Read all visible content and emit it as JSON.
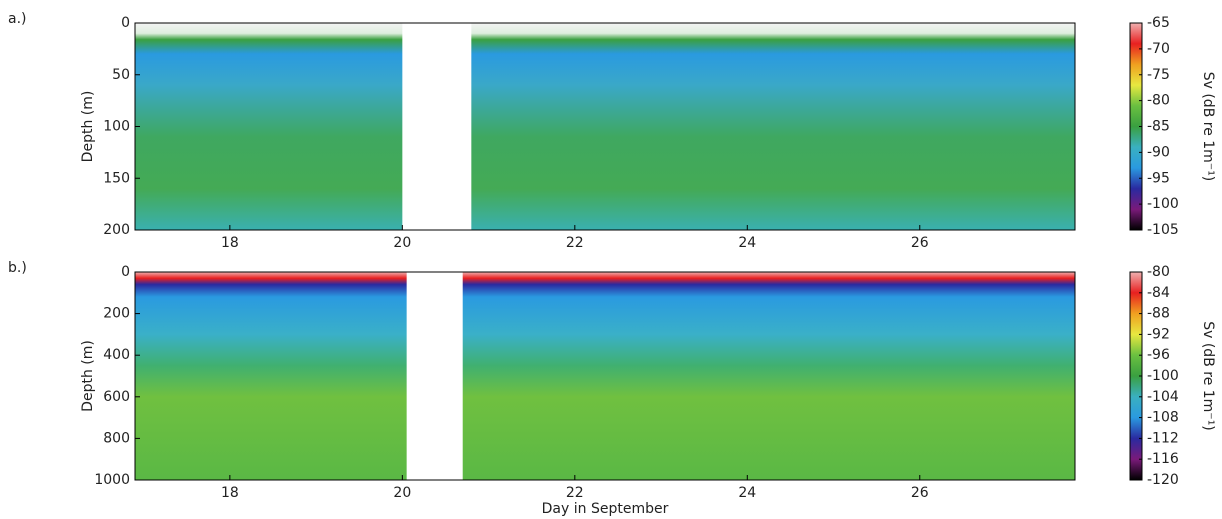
{
  "chart_data": [
    {
      "type": "heatmap",
      "panel_label": "a.)",
      "ylabel": "Depth (m)",
      "xlim": [
        16.9,
        27.8
      ],
      "xticks": [
        18,
        20,
        22,
        24,
        26
      ],
      "ylim": [
        0,
        200
      ],
      "yticks": [
        0,
        50,
        100,
        150,
        200
      ],
      "y_inverted": true,
      "gap": [
        20.0,
        20.8
      ],
      "colorbar": {
        "label": "Sv (dB re 1m⁻¹)",
        "lim": [
          -105,
          -65
        ],
        "ticks": [
          -65,
          -70,
          -75,
          -80,
          -85,
          -90,
          -95,
          -100,
          -105
        ],
        "colors": [
          "#000000",
          "#7a1a7a",
          "#2a2aa0",
          "#2a9ae0",
          "#3ab0c0",
          "#3aa040",
          "#6ac040",
          "#e8e840",
          "#f0a020",
          "#e82020",
          "#f0b0b0"
        ]
      }
    },
    {
      "type": "heatmap",
      "panel_label": "b.)",
      "ylabel": "Depth (m)",
      "xlabel": "Day in September",
      "xlim": [
        16.9,
        27.8
      ],
      "xticks": [
        18,
        20,
        22,
        24,
        26
      ],
      "ylim": [
        0,
        1000
      ],
      "yticks": [
        0,
        200,
        400,
        600,
        800,
        1000
      ],
      "y_inverted": true,
      "gap": [
        20.05,
        20.7
      ],
      "colorbar": {
        "label": "Sv (dB re 1m⁻¹)",
        "lim": [
          -120,
          -80
        ],
        "ticks": [
          -80,
          -84,
          -88,
          -92,
          -96,
          -100,
          -104,
          -108,
          -112,
          -116,
          -120
        ],
        "colors": [
          "#000000",
          "#7a1a7a",
          "#2a2aa0",
          "#2a9ae0",
          "#3ab0c0",
          "#3aa040",
          "#6ac040",
          "#e8e840",
          "#f0a020",
          "#e82020",
          "#f0b0b0"
        ]
      }
    }
  ]
}
